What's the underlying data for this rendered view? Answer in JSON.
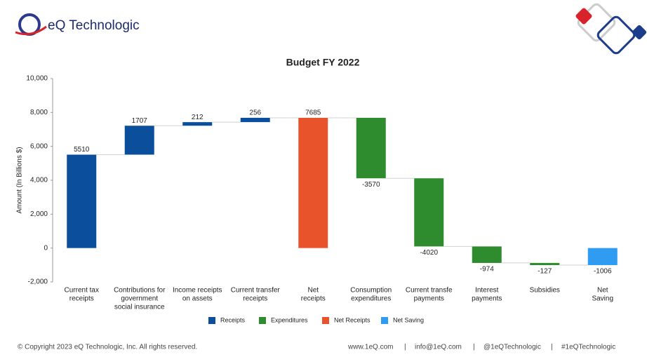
{
  "header": {
    "brand": "eQ Technologic"
  },
  "chart_data": {
    "type": "waterfall",
    "title": "Budget FY 2022",
    "y_label": "Amount (In Billions $)",
    "categories": [
      [
        "Current tax",
        "receipts"
      ],
      [
        "Contributions for",
        "government",
        "social insurance"
      ],
      [
        "Income receipts",
        "on assets"
      ],
      [
        "Current transfer",
        "receipts"
      ],
      [
        "Net",
        "receipts"
      ],
      [
        "Consumption",
        "expenditures"
      ],
      [
        "Current transfe",
        "payments"
      ],
      [
        "Interest",
        "payments"
      ],
      [
        "Subsidies"
      ],
      [
        "Net",
        "Saving"
      ]
    ],
    "series": [
      {
        "name": "Receipts",
        "color": "#0b4f9c",
        "values": [
          5510,
          1707,
          212,
          256,
          null,
          null,
          null,
          null,
          null,
          null
        ]
      },
      {
        "name": "Expenditures",
        "color": "#2e8b2e",
        "values": [
          null,
          null,
          null,
          null,
          null,
          -3570,
          -4020,
          -974,
          -127,
          null
        ]
      },
      {
        "name": "Net Receipts",
        "color": "#e9532b",
        "values": [
          null,
          null,
          null,
          null,
          7685,
          null,
          null,
          null,
          null,
          null
        ]
      },
      {
        "name": "Net Saving",
        "color": "#2f9cf1",
        "values": [
          null,
          null,
          null,
          null,
          null,
          null,
          null,
          null,
          null,
          -1006
        ]
      }
    ],
    "ylim": [
      -2000,
      10000
    ],
    "yticks": [
      {
        "value": -2000,
        "label": "-2,000"
      },
      0,
      {
        "value": 2000,
        "label": "2,000"
      },
      {
        "value": 4000,
        "label": "4,000"
      },
      {
        "value": 6000,
        "label": "6,000"
      },
      {
        "value": 8000,
        "label": "8,000"
      },
      {
        "value": 10000,
        "label": "10,000"
      }
    ],
    "grid": false,
    "legend": "bottom"
  },
  "footer": {
    "copyright": "© Copyright 2023 eQ Technologic, Inc. All rights reserved.",
    "separator": "|",
    "links": [
      "www.1eQ.com",
      "info@1eQ.com",
      "@1eQTechnologic",
      "#1eQTechnologic"
    ]
  }
}
